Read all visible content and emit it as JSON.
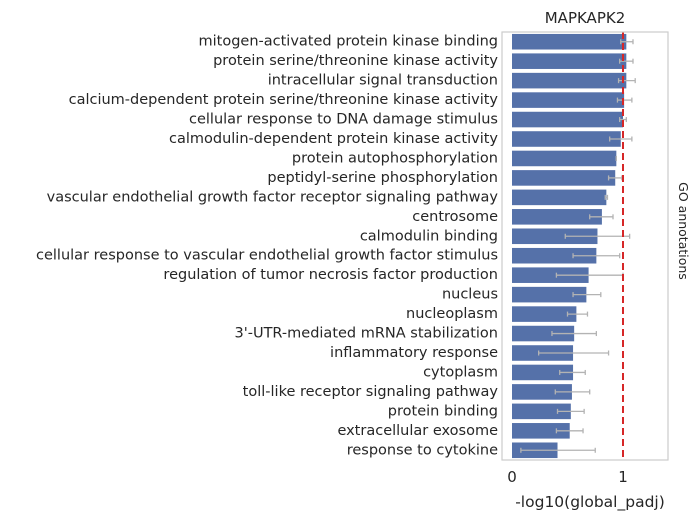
{
  "chart_data": {
    "type": "bar",
    "orientation": "horizontal",
    "title": "MAPKAPK2",
    "xlabel": "-log10(global_padj)",
    "side_label": "GO annotations",
    "xlim": [
      0,
      1.4
    ],
    "xticks": [
      "0",
      "1"
    ],
    "xtick_values": [
      0,
      1
    ],
    "reference_line": 1,
    "bar_color": "#5571a9",
    "errorbar_color": "#b3b3b3",
    "reference_line_color": "#d62728",
    "frame_color": "#cccccc",
    "categories": [
      "mitogen-activated protein kinase binding",
      "protein serine/threonine kinase activity",
      "intracellular signal transduction",
      "calcium-dependent protein serine/threonine kinase activity",
      "cellular response to DNA damage stimulus",
      "calmodulin-dependent protein kinase activity",
      "protein autophosphorylation",
      "peptidyl-serine phosphorylation",
      "vascular endothelial growth factor receptor signaling pathway",
      "centrosome",
      "calmodulin binding",
      "cellular response to vascular endothelial growth factor stimulus",
      "regulation of tumor necrosis factor production",
      "nucleus",
      "nucleoplasm",
      "3'-UTR-mediated mRNA stabilization",
      "inflammatory response",
      "cytoplasm",
      "toll-like receptor signaling pathway",
      "protein binding",
      "extracellular exosome",
      "response to cytokine"
    ],
    "values": [
      1.03,
      1.03,
      1.03,
      1.01,
      1.0,
      0.98,
      0.94,
      0.93,
      0.85,
      0.81,
      0.77,
      0.76,
      0.69,
      0.67,
      0.58,
      0.56,
      0.55,
      0.55,
      0.54,
      0.53,
      0.52,
      0.41
    ],
    "error_low": [
      0.98,
      0.97,
      0.96,
      0.95,
      0.97,
      0.88,
      0.94,
      0.87,
      0.84,
      0.7,
      0.48,
      0.55,
      0.4,
      0.55,
      0.5,
      0.36,
      0.24,
      0.43,
      0.39,
      0.41,
      0.4,
      0.08
    ],
    "error_high": [
      1.09,
      1.09,
      1.11,
      1.08,
      1.03,
      1.08,
      0.94,
      0.99,
      0.86,
      0.91,
      1.06,
      0.97,
      1.0,
      0.8,
      0.68,
      0.76,
      0.87,
      0.66,
      0.7,
      0.65,
      0.64,
      0.75
    ]
  }
}
